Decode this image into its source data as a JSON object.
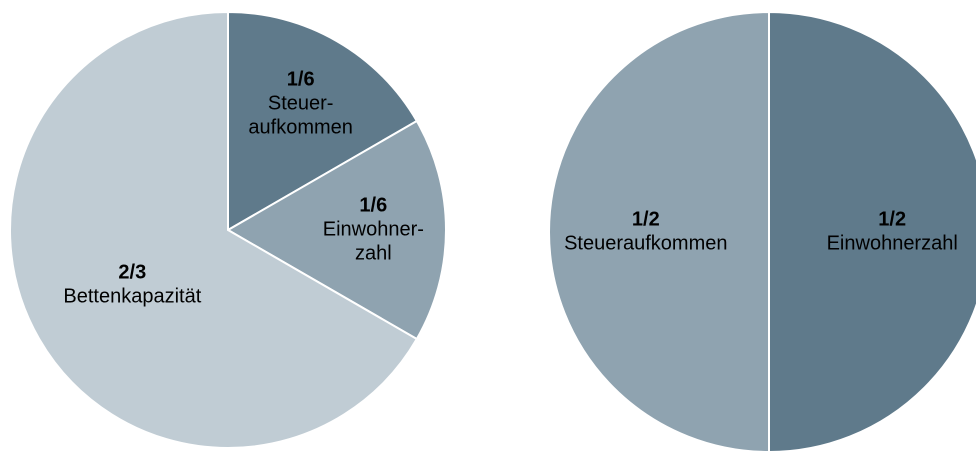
{
  "chart_data": [
    {
      "type": "pie",
      "categories": [
        [
          "Steuer-",
          "aufkommen"
        ],
        [
          "Einwohner-",
          "zahl"
        ],
        [
          "Bettenkapazität"
        ]
      ],
      "values": [
        0.1667,
        0.1667,
        0.6667
      ],
      "value_labels": [
        "1/6",
        "1/6",
        "2/3"
      ],
      "colors": [
        "#5f7a8b",
        "#8fa3b0",
        "#c0ccd4"
      ]
    },
    {
      "type": "pie",
      "categories": [
        [
          "Einwohnerzahl"
        ],
        [
          "Steueraufkommen"
        ]
      ],
      "values": [
        0.5,
        0.5
      ],
      "value_labels": [
        "1/2",
        "1/2"
      ],
      "colors": [
        "#5f7a8b",
        "#8fa3b0"
      ]
    }
  ]
}
